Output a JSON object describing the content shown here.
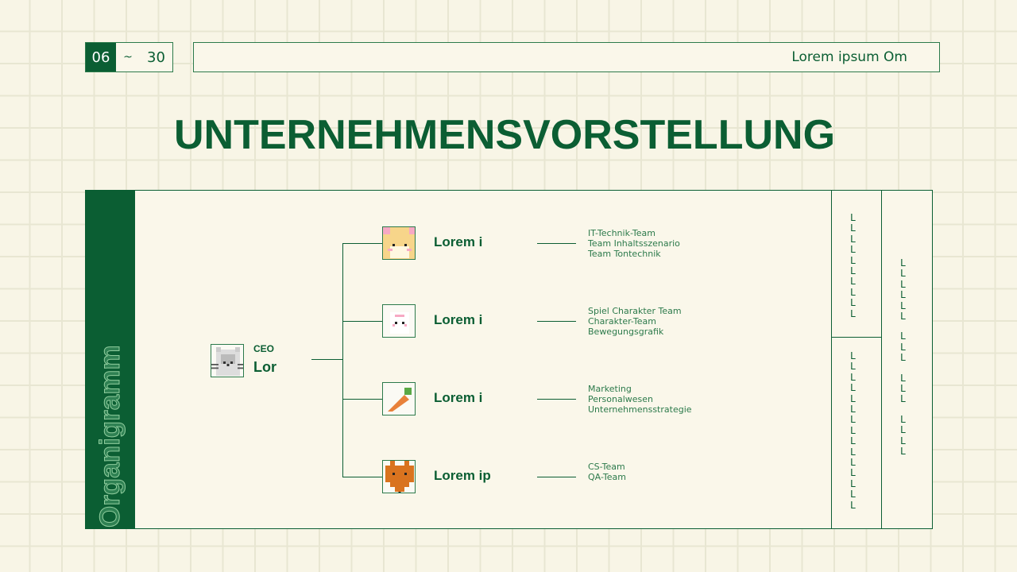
{
  "header": {
    "date_start": "06",
    "date_sep": "~",
    "date_end": "30",
    "subtitle": "Lorem ipsum Om"
  },
  "title": "UNTERNEHMENSVORSTELLUNG",
  "sidebar": {
    "label": "Organigramm"
  },
  "ceo": {
    "role": "CEO",
    "name": "Lor",
    "icon": "cat-icon"
  },
  "departments": [
    {
      "name": "Lorem i",
      "icon": "hamster-icon",
      "teams": [
        "IT-Technik-Team",
        "Team Inhaltsszenario",
        "Team Tontechnik"
      ]
    },
    {
      "name": "Lorem i",
      "icon": "rabbit-icon",
      "teams": [
        "Spiel Charakter Team",
        "Charakter-Team",
        "Bewegungsgrafik"
      ]
    },
    {
      "name": "Lorem i",
      "icon": "carrot-icon",
      "teams": [
        "Marketing",
        "Personalwesen",
        "Unternehmensstrategie"
      ]
    },
    {
      "name": "Lorem ip",
      "icon": "fox-icon",
      "teams": [
        "CS-Team",
        "QA-Team"
      ]
    }
  ],
  "right_columns": {
    "col1_top": [
      "L",
      "L",
      "L",
      "L",
      "L",
      "L",
      "L",
      "L",
      "L",
      "L"
    ],
    "col1_bottom": [
      "L",
      "L",
      "L",
      "L",
      "L",
      "L",
      "L",
      "L",
      "L",
      "L",
      "L",
      "L",
      "L",
      "L",
      "L"
    ],
    "col2_groups": [
      [
        "L",
        "L",
        "L",
        "L",
        "L",
        "L"
      ],
      [
        "L",
        "L",
        "L"
      ],
      [
        "L",
        "L",
        "L"
      ],
      [
        "L",
        "L",
        "L",
        "L"
      ]
    ]
  },
  "colors": {
    "primary": "#0b5e33",
    "background": "#f8f5e6"
  }
}
